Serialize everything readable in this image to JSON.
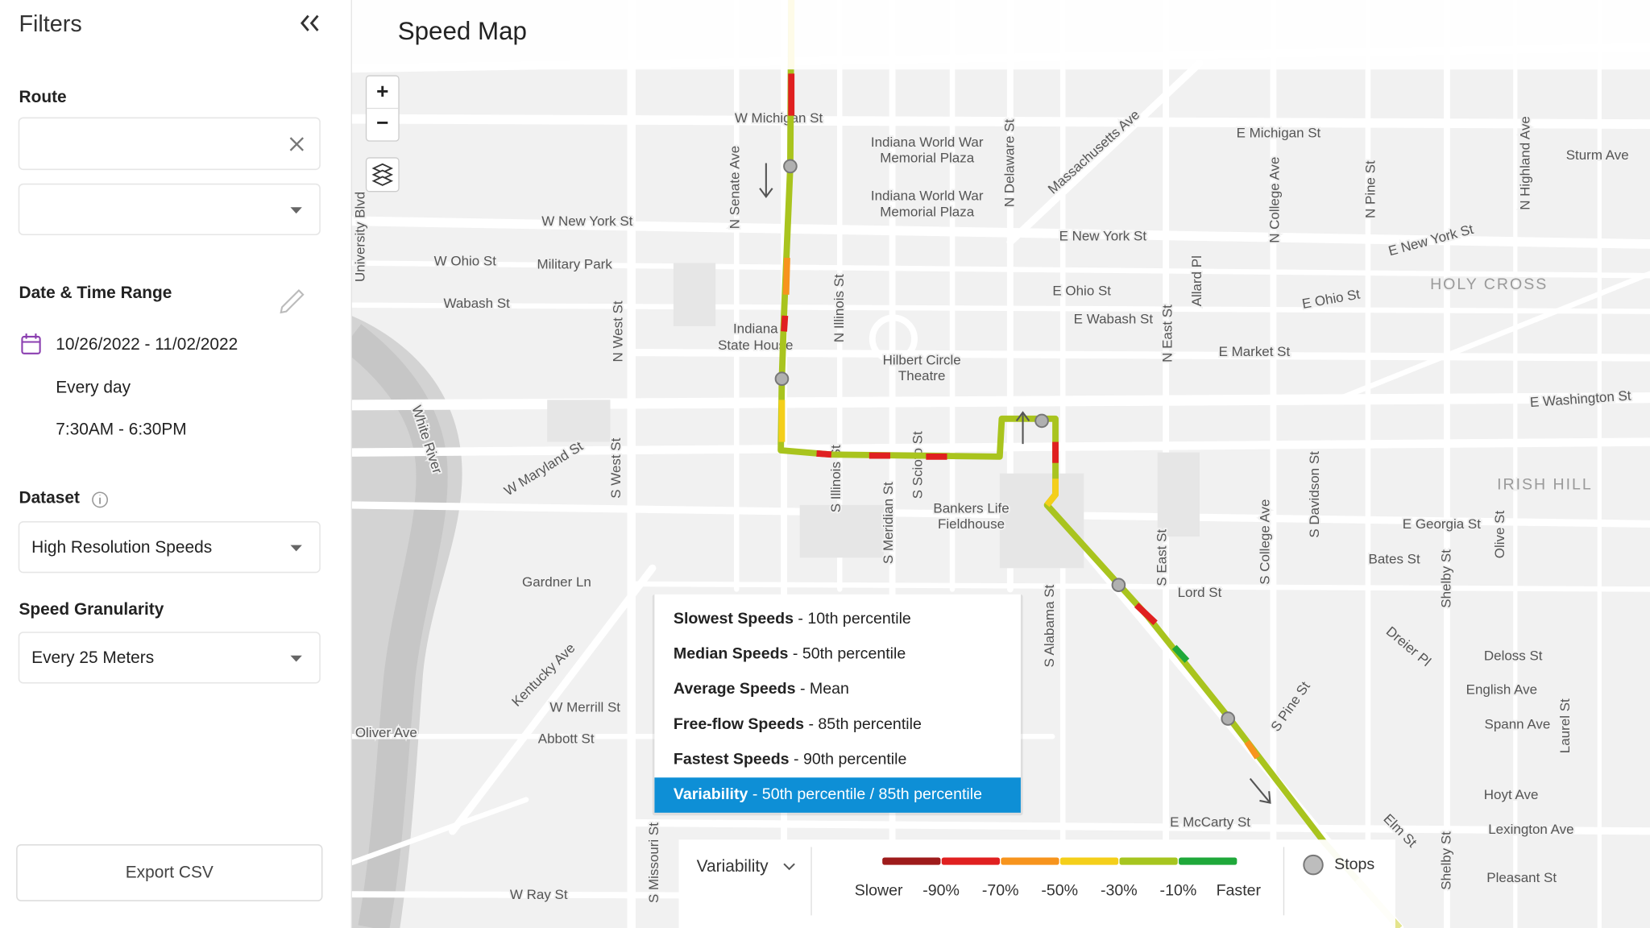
{
  "sidebar": {
    "title": "Filters",
    "route_label": "Route",
    "date_time_label": "Date & Time Range",
    "date_range": "10/26/2022 - 11/02/2022",
    "days": "Every day",
    "time_range": "7:30AM - 6:30PM",
    "dataset_label": "Dataset",
    "dataset_value": "High Resolution Speeds",
    "granularity_label": "Speed Granularity",
    "granularity_value": "Every 25 Meters",
    "export_button": "Export CSV"
  },
  "map": {
    "title": "Speed Map",
    "zoom_in": "+",
    "zoom_out": "−",
    "street_labels": [
      "W Michigan St",
      "Indiana World War",
      "Memorial Plaza",
      "Indiana World War",
      "Memorial Plaza",
      "E Michigan St",
      "Sturm Ave",
      "W New York St",
      "N Senate Ave",
      "N Delaware St",
      "Massachusetts Ave",
      "N College Ave",
      "N Pine St",
      "N Highland Ave",
      "E New York St",
      "E New York St",
      "W Ohio St",
      "Military Park",
      "Wabash St",
      "University Blvd",
      "N West St",
      "Indiana",
      "State House",
      "N Illinois St",
      "Hilbert Circle",
      "Theatre",
      "E Ohio St",
      "E Wabash St",
      "N East St",
      "Allard Pl",
      "E Market St",
      "E Ohio St",
      "HOLY CROSS",
      "E Washington St",
      "W Maryland St",
      "S West St",
      "White River",
      "S Illinois St",
      "S Meridian St",
      "S Scioto St",
      "Bankers Life",
      "Fieldhouse",
      "IRISH HILL",
      "E Georgia St",
      "Bates St",
      "S East St",
      "S College Ave",
      "S Davidson St",
      "Shelby St",
      "Gardner Ln",
      "Lord St",
      "S Alabama St",
      "Kentucky Ave",
      "W Merrill St",
      "Abbott St",
      "Oliver Ave",
      "Dreier Pl",
      "Deloss St",
      "English Ave",
      "Spann Ave",
      "S Pine St",
      "Hoyt Ave",
      "Lexington Ave",
      "Elm St",
      "Pleasant St",
      "E McCarty St",
      "W Ray St",
      "S Missouri St",
      "Shelby St",
      "Laurel St",
      "Olive St"
    ]
  },
  "dropdown": {
    "options": [
      {
        "bold": "Slowest Speeds",
        "rest": " - 10th percentile"
      },
      {
        "bold": "Median Speeds",
        "rest": " - 50th percentile"
      },
      {
        "bold": "Average Speeds",
        "rest": " - Mean"
      },
      {
        "bold": "Free-flow Speeds",
        "rest": " - 85th percentile"
      },
      {
        "bold": "Fastest Speeds",
        "rest": " - 90th percentile"
      },
      {
        "bold": "Variability",
        "rest": " - 50th percentile / 85th percentile"
      }
    ],
    "selected_color": "#0e8fd6"
  },
  "legend": {
    "metric": "Variability",
    "slower": "Slower",
    "faster": "Faster",
    "scale_colors": [
      "#9e1b1b",
      "#e02020",
      "#f7941d",
      "#f4cf1a",
      "#a6c51f",
      "#1fa83a"
    ],
    "scale_labels": [
      "-90%",
      "-70%",
      "-50%",
      "-30%",
      "-10%"
    ],
    "stops": "Stops"
  }
}
